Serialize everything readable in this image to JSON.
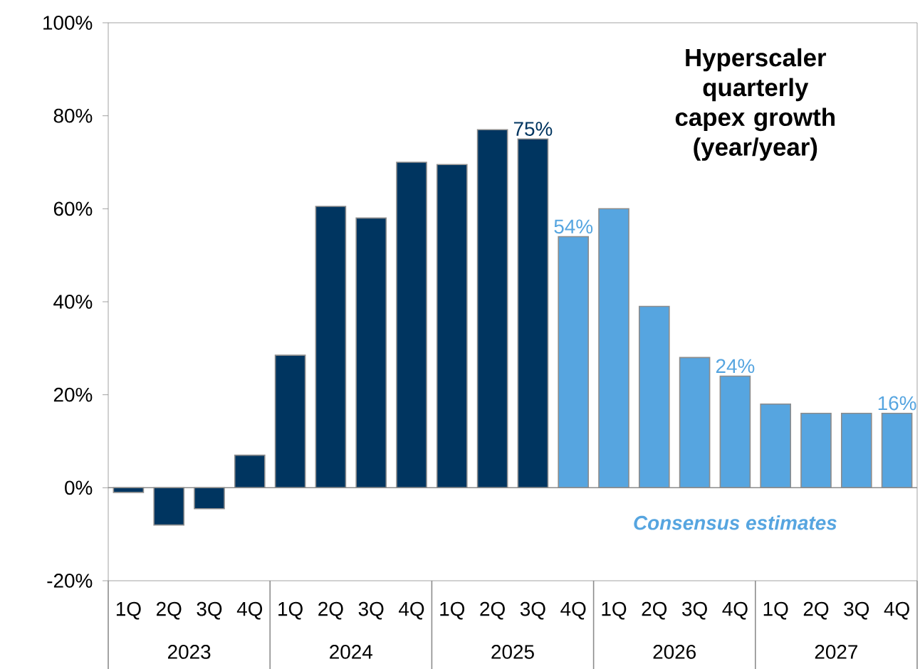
{
  "chart_data": {
    "type": "bar",
    "title": "Hyperscaler quarterly capex growth (year/year)",
    "categories": [
      "1Q",
      "2Q",
      "3Q",
      "4Q",
      "1Q",
      "2Q",
      "3Q",
      "4Q",
      "1Q",
      "2Q",
      "3Q",
      "4Q",
      "1Q",
      "2Q",
      "3Q",
      "4Q",
      "1Q",
      "2Q",
      "3Q",
      "4Q"
    ],
    "values": [
      -1,
      -8,
      -4.5,
      7,
      28.5,
      60.5,
      58,
      70,
      69.5,
      77,
      75,
      54,
      60,
      39,
      28,
      24,
      18,
      16,
      16,
      16
    ],
    "colors": [
      "#003560",
      "#003560",
      "#003560",
      "#003560",
      "#003560",
      "#003560",
      "#003560",
      "#003560",
      "#003560",
      "#003560",
      "#003560",
      "#56a5e0",
      "#56a5e0",
      "#56a5e0",
      "#56a5e0",
      "#56a5e0",
      "#56a5e0",
      "#56a5e0",
      "#56a5e0",
      "#56a5e0"
    ],
    "value_labels": [
      null,
      null,
      null,
      null,
      null,
      null,
      null,
      null,
      null,
      null,
      "75%",
      "54%",
      null,
      null,
      null,
      "24%",
      null,
      null,
      null,
      "16%"
    ],
    "ylim": [
      -20,
      100
    ],
    "yticks": [
      {
        "value": -20,
        "label": "-20%"
      },
      {
        "value": 0,
        "label": "0%"
      },
      {
        "value": 20,
        "label": "20%"
      },
      {
        "value": 40,
        "label": "40%"
      },
      {
        "value": 60,
        "label": "60%"
      },
      {
        "value": 80,
        "label": "80%"
      },
      {
        "value": 100,
        "label": "100%"
      }
    ],
    "annotations": [
      "2023",
      "2024",
      "2025",
      "2026",
      "2027",
      "Consensus estimates"
    ],
    "ref_lines": [
      {
        "axis": "y",
        "value": 0
      }
    ],
    "grid": false
  }
}
